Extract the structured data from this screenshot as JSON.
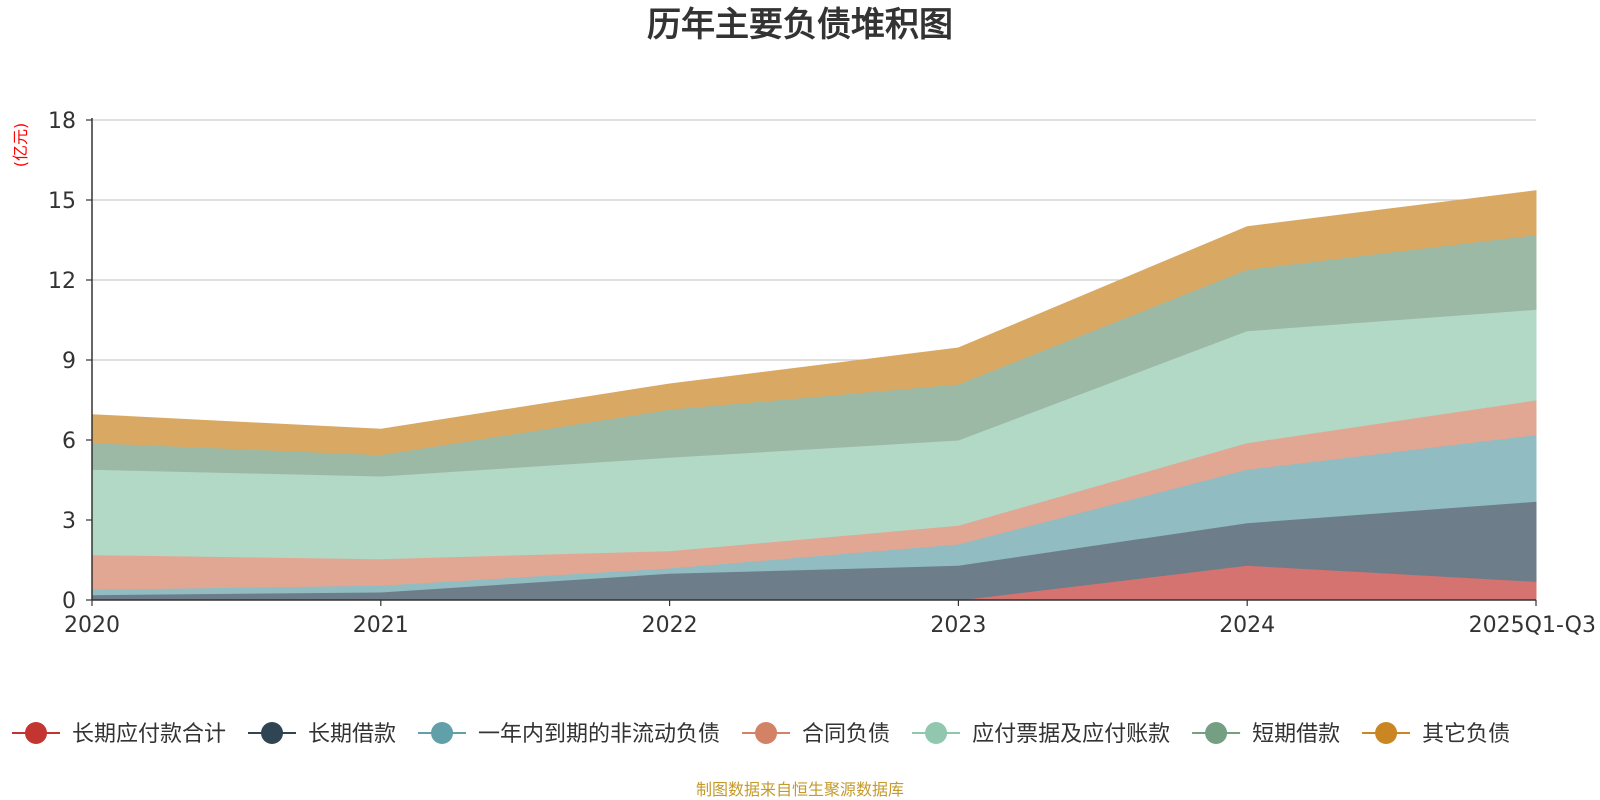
{
  "chart_data": {
    "type": "area",
    "stacked": true,
    "title": "历年主要负债堆积图",
    "ylabel": "(亿元)",
    "ylim": [
      0,
      18
    ],
    "yticks": [
      0,
      3,
      6,
      9,
      12,
      15,
      18
    ],
    "categories": [
      "2020",
      "2021",
      "2022",
      "2023",
      "2024",
      "2025Q1-Q3"
    ],
    "grid": true,
    "legend_position": "bottom",
    "series": [
      {
        "name": "长期应付款合计",
        "color": "#c23531",
        "fill": "#d57370",
        "values": [
          0,
          0,
          0,
          0,
          1.3,
          0.7
        ]
      },
      {
        "name": "长期借款",
        "color": "#2f4554",
        "fill": "#6d7d89",
        "values": [
          0.2,
          0.3,
          1.0,
          1.3,
          1.6,
          3.0
        ]
      },
      {
        "name": "一年内到期的非流动负债",
        "color": "#61a0a8",
        "fill": "#90bcc2",
        "values": [
          0.2,
          0.25,
          0.2,
          0.8,
          2.0,
          2.5
        ]
      },
      {
        "name": "合同负债",
        "color": "#d48265",
        "fill": "#e1a793",
        "values": [
          1.3,
          1.0,
          0.65,
          0.7,
          1.0,
          1.3
        ]
      },
      {
        "name": "应付票据及应付账款",
        "color": "#91c7ae",
        "fill": "#b2d8c6",
        "values": [
          3.2,
          3.1,
          3.5,
          3.2,
          4.2,
          3.4
        ]
      },
      {
        "name": "短期借款",
        "color": "#749f83",
        "fill": "#9cb9a6",
        "values": [
          1.0,
          0.8,
          1.8,
          2.1,
          2.3,
          2.8
        ]
      },
      {
        "name": "其它负债",
        "color": "#ca8622",
        "fill": "#d9a964",
        "values": [
          1.05,
          0.95,
          0.95,
          1.35,
          1.6,
          1.65
        ]
      }
    ],
    "source": "制图数据来自恒生聚源数据库"
  },
  "colors": {
    "axis": "#333333",
    "grid": "#cccccc",
    "unit_label": "#ff0000",
    "source_text": "#c49a2c"
  }
}
